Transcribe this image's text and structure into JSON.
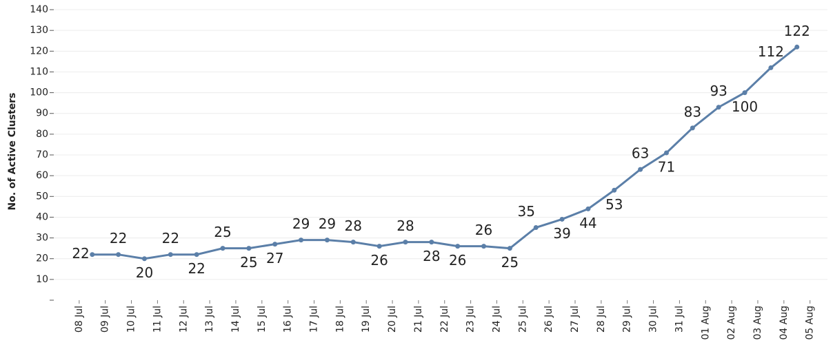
{
  "chart_data": {
    "type": "line",
    "y_axis_label": "No. of Active Clusters",
    "categories": [
      "08 Jul",
      "09 Jul",
      "10 Jul",
      "11 Jul",
      "12 Jul",
      "13 Jul",
      "14 Jul",
      "15 Jul",
      "16 Jul",
      "17 Jul",
      "18 Jul",
      "19 Jul",
      "20 Jul",
      "21 Jul",
      "22 Jul",
      "23 Jul",
      "24 Jul",
      "25 Jul",
      "26 Jul",
      "27 Jul",
      "28 Jul",
      "29 Jul",
      "30 Jul",
      "31 Jul",
      "01 Aug",
      "02 Aug",
      "03 Aug",
      "04 Aug",
      "05 Aug"
    ],
    "series": [
      {
        "name": "Active Clusters",
        "color": "#5b7fa8",
        "values": [
          22,
          22,
          20,
          22,
          22,
          25,
          25,
          27,
          29,
          29,
          28,
          26,
          28,
          28,
          26,
          26,
          25,
          35,
          39,
          44,
          53,
          63,
          71,
          83,
          93,
          100,
          112,
          122,
          null
        ]
      }
    ],
    "ylim": [
      0,
      143
    ],
    "yticks": [
      10,
      20,
      30,
      40,
      50,
      60,
      70,
      80,
      90,
      100,
      110,
      120,
      130,
      140
    ],
    "grid": true
  }
}
